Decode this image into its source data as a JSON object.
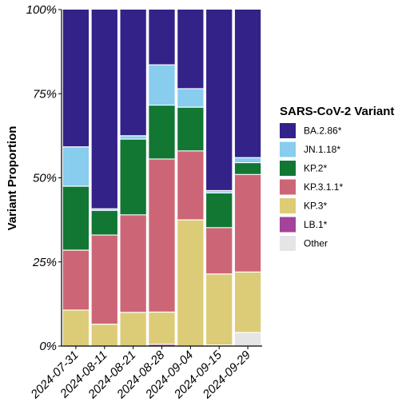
{
  "chart_data": {
    "type": "bar",
    "stacked": "proportion",
    "title": "",
    "xlabel": "",
    "ylabel": "Variant Proportion",
    "ylim": [
      0,
      1
    ],
    "yticks": [
      "0%",
      "25%",
      "50%",
      "75%",
      "100%"
    ],
    "categories": [
      "2024-07-31",
      "2024-08-11",
      "2024-08-21",
      "2024-08-28",
      "2024-09-04",
      "2024-09-15",
      "2024-09-29"
    ],
    "legend": {
      "title": "SARS-CoV-2 Variant",
      "position": "right"
    },
    "series": [
      {
        "name": "Other",
        "color": "#e5e5e5",
        "values": [
          0.0,
          0.0,
          0.0,
          0.0,
          0.0,
          0.0,
          0.04
        ]
      },
      {
        "name": "LB.1*",
        "color": "#a4439a",
        "values": [
          0.0,
          0.0,
          0.0,
          0.005,
          0.0,
          0.003,
          0.0
        ]
      },
      {
        "name": "KP.3*",
        "color": "#ddcc77",
        "values": [
          0.107,
          0.065,
          0.1,
          0.096,
          0.375,
          0.211,
          0.18
        ]
      },
      {
        "name": "KP.3.1.1*",
        "color": "#cc6677",
        "values": [
          0.178,
          0.265,
          0.29,
          0.455,
          0.205,
          0.138,
          0.29
        ]
      },
      {
        "name": "KP.2*",
        "color": "#117733",
        "values": [
          0.19,
          0.073,
          0.225,
          0.16,
          0.13,
          0.103,
          0.035
        ]
      },
      {
        "name": "JN.1.18*",
        "color": "#88ccee",
        "values": [
          0.117,
          0.005,
          0.01,
          0.12,
          0.055,
          0.007,
          0.015
        ]
      },
      {
        "name": "BA.2.86*",
        "color": "#332288",
        "values": [
          0.408,
          0.592,
          0.375,
          0.164,
          0.235,
          0.538,
          0.44
        ]
      }
    ],
    "legend_order": [
      "BA.2.86*",
      "JN.1.18*",
      "KP.2*",
      "KP.3.1.1*",
      "KP.3*",
      "LB.1*",
      "Other"
    ]
  }
}
